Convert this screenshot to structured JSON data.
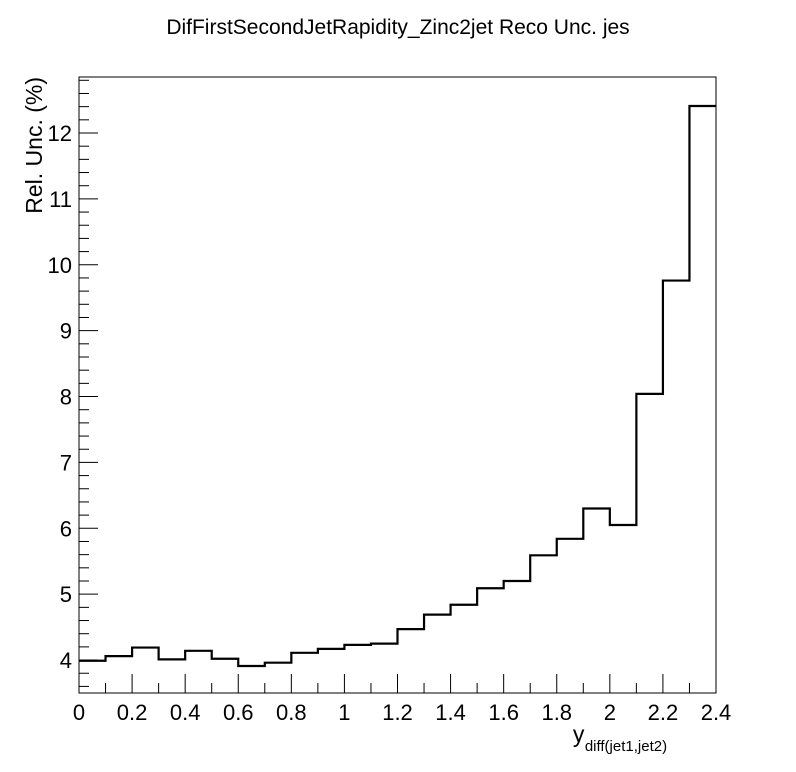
{
  "chart_data": {
    "type": "histogram",
    "title": "DifFirstSecondJetRapidity_Zinc2jet Reco Unc. jes",
    "xlabel_main": "y",
    "xlabel_sub": "diff(jet1,jet2)",
    "ylabel": "Rel. Unc. (%)",
    "xlim": [
      0,
      2.4
    ],
    "ylim": [
      3.5,
      12.85
    ],
    "bin_edges": [
      0,
      0.1,
      0.2,
      0.3,
      0.4,
      0.5,
      0.6,
      0.7,
      0.8,
      0.9,
      1.0,
      1.1,
      1.2,
      1.3,
      1.4,
      1.5,
      1.6,
      1.7,
      1.8,
      1.9,
      2.0,
      2.1,
      2.2,
      2.3,
      2.4
    ],
    "values": [
      3.99,
      4.06,
      4.19,
      4.01,
      4.14,
      4.02,
      3.91,
      3.96,
      4.11,
      4.17,
      4.23,
      4.25,
      4.47,
      4.69,
      4.84,
      5.09,
      5.2,
      5.59,
      5.84,
      6.3,
      6.05,
      8.04,
      9.76,
      12.41
    ],
    "x_ticks": [
      "0",
      "0.2",
      "0.4",
      "0.6",
      "0.8",
      "1",
      "1.2",
      "1.4",
      "1.6",
      "1.8",
      "2",
      "2.2",
      "2.4"
    ],
    "y_ticks": [
      "4",
      "5",
      "6",
      "7",
      "8",
      "9",
      "10",
      "11",
      "12"
    ],
    "grid": false,
    "legend": "none",
    "line_color": "#000000"
  }
}
